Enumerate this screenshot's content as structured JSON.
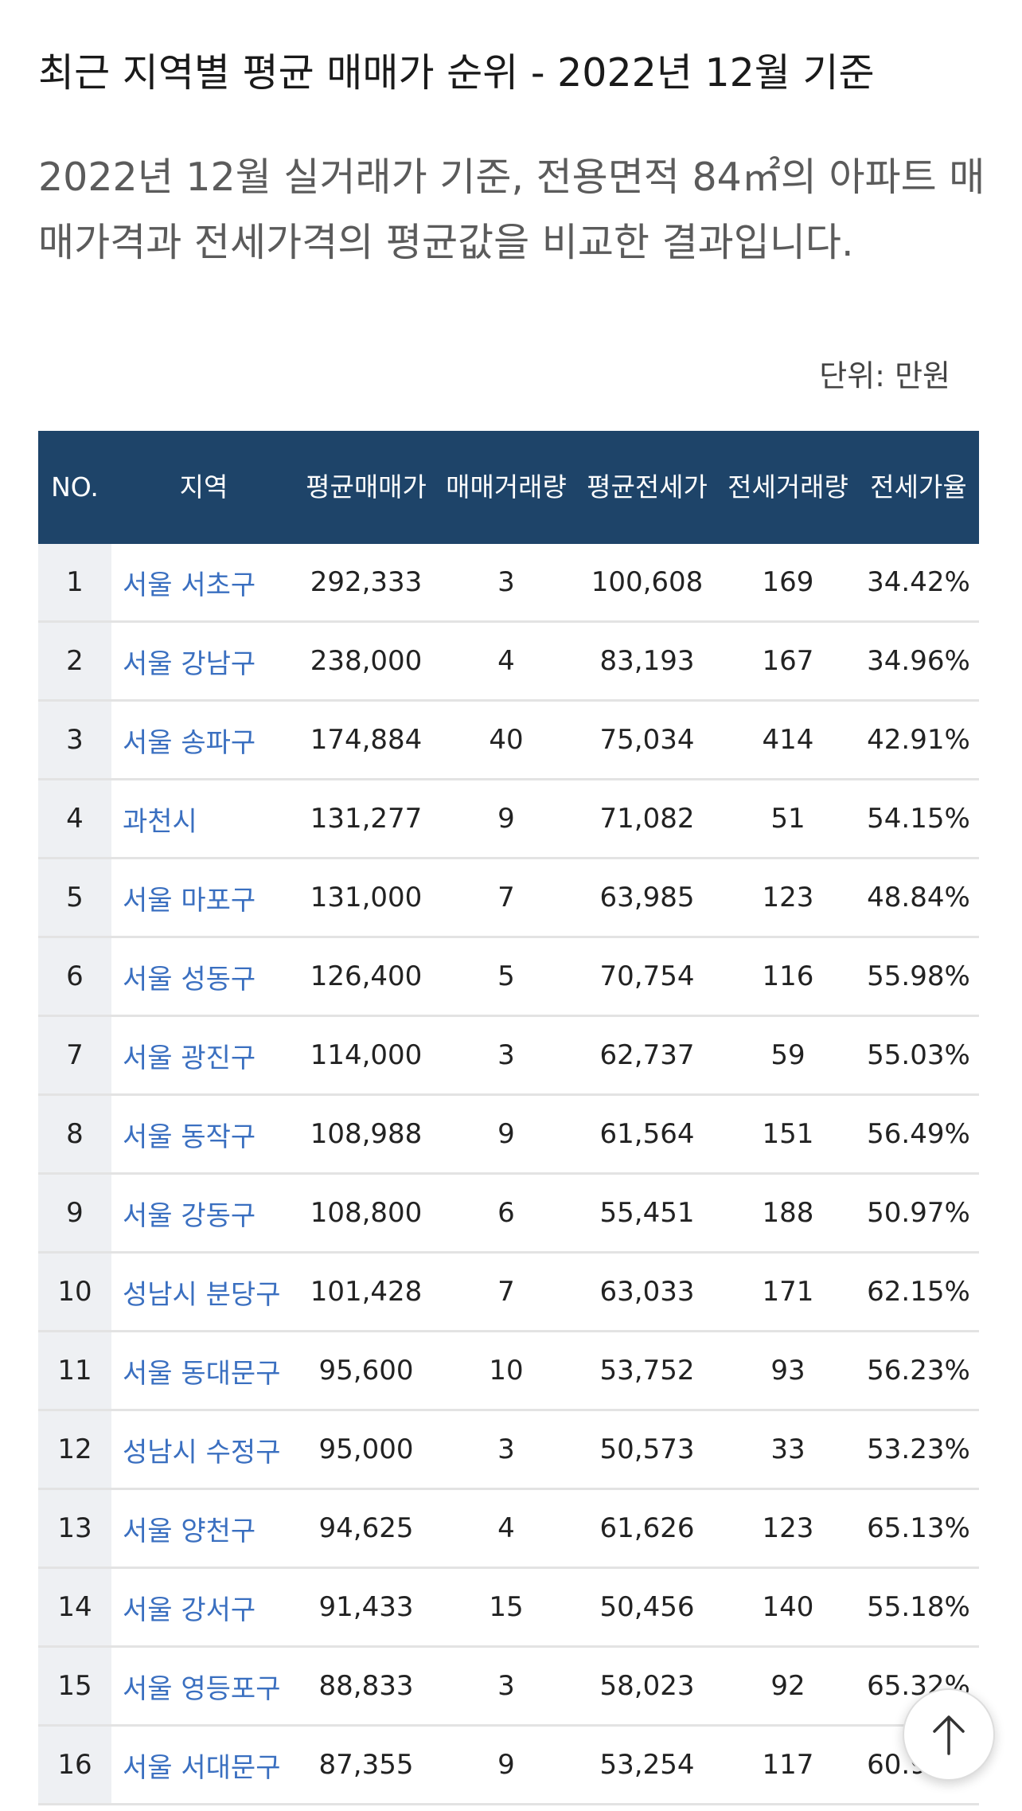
{
  "title": "최근 지역별 평균 매매가 순위 - 2022년 12월 기준",
  "intro": "2022년 12월 실거래가 기준, 전용면적 84㎡의 아파트 매매가격과 전세가격의 평균값을 비교한 결과입니다.",
  "unit": "단위: 만원",
  "table": {
    "headers": [
      "NO.",
      "지역",
      "평균매매가",
      "매매거래량",
      "평균전세가",
      "전세거래량",
      "전세가율"
    ],
    "rows": [
      [
        "1",
        "서울 서초구",
        "292,333",
        "3",
        "100,608",
        "169",
        "34.42%"
      ],
      [
        "2",
        "서울 강남구",
        "238,000",
        "4",
        "83,193",
        "167",
        "34.96%"
      ],
      [
        "3",
        "서울 송파구",
        "174,884",
        "40",
        "75,034",
        "414",
        "42.91%"
      ],
      [
        "4",
        "과천시",
        "131,277",
        "9",
        "71,082",
        "51",
        "54.15%"
      ],
      [
        "5",
        "서울 마포구",
        "131,000",
        "7",
        "63,985",
        "123",
        "48.84%"
      ],
      [
        "6",
        "서울 성동구",
        "126,400",
        "5",
        "70,754",
        "116",
        "55.98%"
      ],
      [
        "7",
        "서울 광진구",
        "114,000",
        "3",
        "62,737",
        "59",
        "55.03%"
      ],
      [
        "8",
        "서울 동작구",
        "108,988",
        "9",
        "61,564",
        "151",
        "56.49%"
      ],
      [
        "9",
        "서울 강동구",
        "108,800",
        "6",
        "55,451",
        "188",
        "50.97%"
      ],
      [
        "10",
        "성남시 분당구",
        "101,428",
        "7",
        "63,033",
        "171",
        "62.15%"
      ],
      [
        "11",
        "서울 동대문구",
        "95,600",
        "10",
        "53,752",
        "93",
        "56.23%"
      ],
      [
        "12",
        "성남시 수정구",
        "95,000",
        "3",
        "50,573",
        "33",
        "53.23%"
      ],
      [
        "13",
        "서울 양천구",
        "94,625",
        "4",
        "61,626",
        "123",
        "65.13%"
      ],
      [
        "14",
        "서울 강서구",
        "91,433",
        "15",
        "50,456",
        "140",
        "55.18%"
      ],
      [
        "15",
        "서울 영등포구",
        "88,833",
        "3",
        "58,023",
        "92",
        "65.32%"
      ],
      [
        "16",
        "서울 서대문구",
        "87,355",
        "9",
        "53,254",
        "117",
        "60.96%"
      ]
    ]
  },
  "scroll_top": {
    "icon": "arrow-up-icon"
  }
}
